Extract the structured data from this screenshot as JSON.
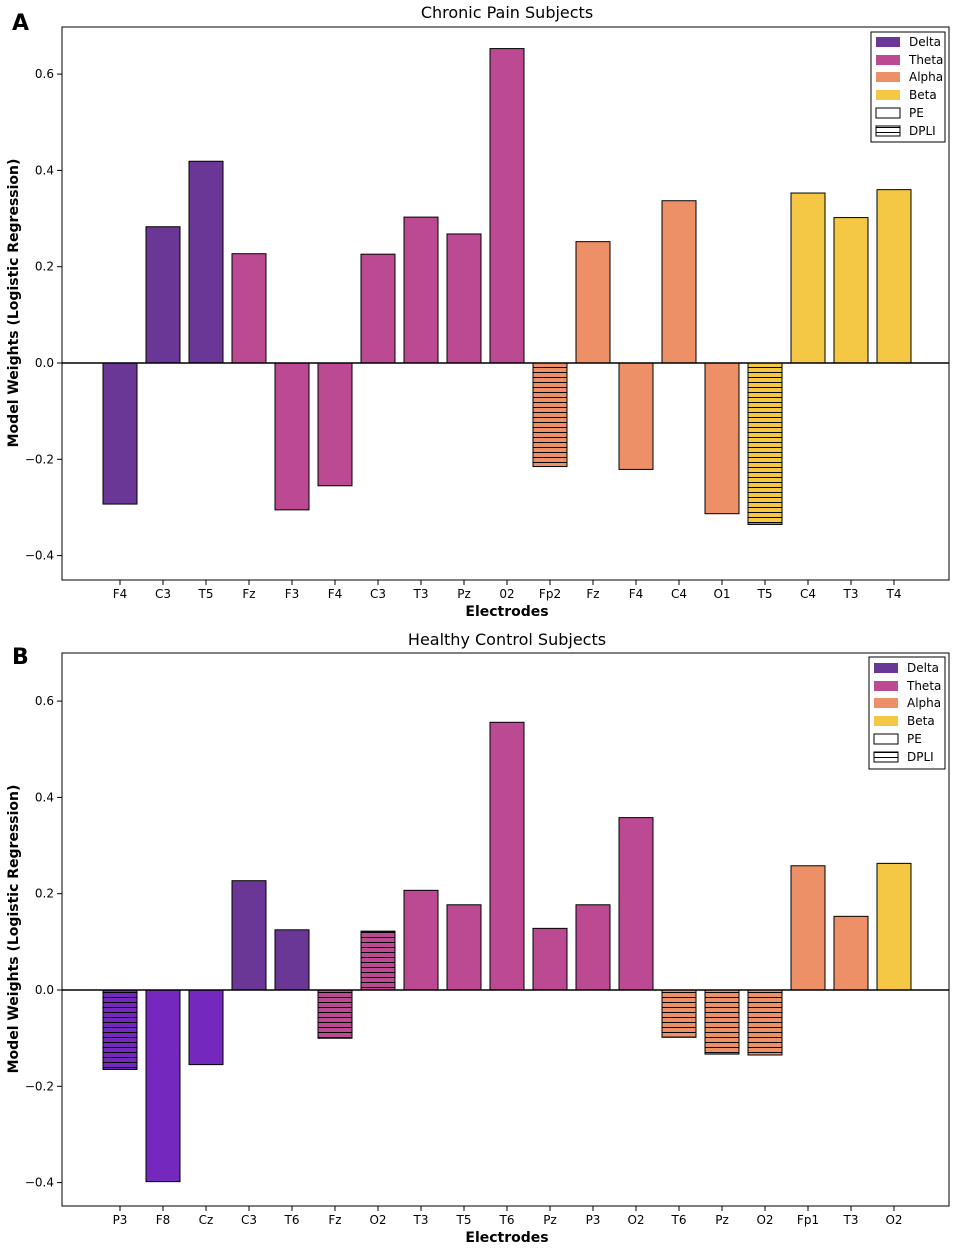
{
  "colors": {
    "Delta": "#6a3797",
    "Theta": "#bc4a92",
    "Alpha": "#ed9068",
    "Beta": "#f4c744",
    "Delta_alt": "#7428bd"
  },
  "legend": {
    "bands": [
      "Delta",
      "Theta",
      "Alpha",
      "Beta"
    ],
    "features": [
      "PE",
      "DPLI"
    ]
  },
  "chart_data": [
    {
      "type": "bar",
      "panel": "A",
      "title": "Chronic Pain Subjects",
      "xlabel": "Electrodes",
      "ylabel": "Model Weights (Logistic Regression)",
      "ylim": [
        -0.45,
        0.7
      ],
      "yticks": [
        -0.4,
        -0.2,
        0.0,
        0.2,
        0.4,
        0.6
      ],
      "yticklabels": [
        "−0.4",
        "−0.2",
        "0.0",
        "0.2",
        "0.4",
        "0.6"
      ],
      "legend_position": "top-right",
      "categories": [
        "F4",
        "C3",
        "T5",
        "Fz",
        "F3",
        "F4",
        "C3",
        "T3",
        "Pz",
        "02",
        "Fp2",
        "Fz",
        "F4",
        "C4",
        "O1",
        "T5",
        "C4",
        "T3",
        "T4"
      ],
      "values": [
        -0.293,
        0.283,
        0.419,
        0.227,
        -0.305,
        -0.255,
        0.226,
        0.303,
        0.268,
        0.653,
        -0.215,
        0.252,
        -0.221,
        0.337,
        -0.313,
        -0.335,
        0.353,
        0.302,
        0.36
      ],
      "bands": [
        "Delta",
        "Delta",
        "Delta",
        "Theta",
        "Theta",
        "Theta",
        "Theta",
        "Theta",
        "Theta",
        "Theta",
        "Alpha",
        "Alpha",
        "Alpha",
        "Alpha",
        "Alpha",
        "Beta",
        "Beta",
        "Beta",
        "Beta"
      ],
      "features": [
        "PE",
        "PE",
        "PE",
        "PE",
        "PE",
        "PE",
        "PE",
        "PE",
        "PE",
        "PE",
        "DPLI",
        "PE",
        "PE",
        "PE",
        "PE",
        "DPLI",
        "PE",
        "PE",
        "PE"
      ]
    },
    {
      "type": "bar",
      "panel": "B",
      "title": "Healthy Control Subjects",
      "xlabel": "Electrodes",
      "ylabel": "Model Weights (Logistic Regression)",
      "ylim": [
        -0.45,
        0.7
      ],
      "yticks": [
        -0.4,
        -0.2,
        0.0,
        0.2,
        0.4,
        0.6
      ],
      "yticklabels": [
        "−0.4",
        "−0.2",
        "0.0",
        "0.2",
        "0.4",
        "0.6"
      ],
      "legend_position": "top-right",
      "categories": [
        "P3",
        "F8",
        "Cz",
        "C3",
        "T6",
        "Fz",
        "O2",
        "T3",
        "T5",
        "T6",
        "Pz",
        "P3",
        "O2",
        "T6",
        "Pz",
        "O2",
        "Fp1",
        "T3",
        "O2"
      ],
      "values": [
        -0.165,
        -0.398,
        -0.155,
        0.227,
        0.125,
        -0.1,
        0.122,
        0.207,
        0.177,
        0.556,
        0.128,
        0.177,
        0.358,
        -0.098,
        -0.133,
        -0.135,
        0.258,
        0.153,
        0.263
      ],
      "bands": [
        "Delta_alt",
        "Delta_alt",
        "Delta_alt",
        "Delta",
        "Delta",
        "Theta",
        "Theta",
        "Theta",
        "Theta",
        "Theta",
        "Theta",
        "Theta",
        "Theta",
        "Alpha",
        "Alpha",
        "Alpha",
        "Alpha",
        "Alpha",
        "Beta"
      ],
      "features": [
        "DPLI",
        "PE",
        "PE",
        "PE",
        "PE",
        "DPLI",
        "DPLI",
        "PE",
        "PE",
        "PE",
        "PE",
        "PE",
        "PE",
        "DPLI",
        "DPLI",
        "DPLI",
        "PE",
        "PE",
        "PE"
      ]
    }
  ]
}
